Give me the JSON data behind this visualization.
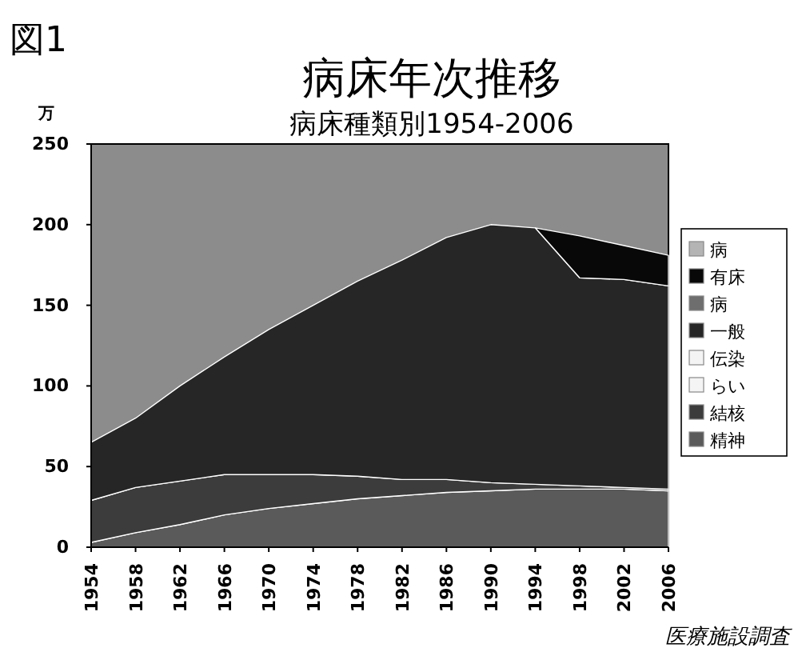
{
  "chart_data": {
    "type": "area",
    "stacked": true,
    "title": "病床年次推移",
    "subtitle": "病床種類別1954-2006",
    "ylabel": "万",
    "annotations": [
      "図1",
      "医療施設調査"
    ],
    "x": [
      1954,
      1958,
      1962,
      1966,
      1970,
      1974,
      1978,
      1982,
      1986,
      1990,
      1994,
      1998,
      2002,
      2006
    ],
    "xlim": [
      1954,
      2006
    ],
    "xticks": [
      1954,
      1958,
      1962,
      1966,
      1970,
      1974,
      1978,
      1982,
      1986,
      1990,
      1994,
      1998,
      2002,
      2006
    ],
    "ylim": [
      0,
      250
    ],
    "yticks": [
      0,
      50,
      100,
      150,
      200,
      250
    ],
    "legend": "right",
    "grid": false,
    "series": [
      {
        "name": "精神",
        "color": "#5a5a5a",
        "values": [
          3,
          9,
          14,
          20,
          24,
          27,
          30,
          32,
          34,
          35,
          36,
          36,
          36,
          35
        ]
      },
      {
        "name": "結核",
        "color": "#3c3c3c",
        "values": [
          26,
          28,
          27,
          25,
          21,
          18,
          14,
          10,
          8,
          5,
          3,
          2,
          1,
          1
        ]
      },
      {
        "name": "らい",
        "color": "#f4f4f4",
        "values": [
          null,
          null,
          null,
          null,
          null,
          null,
          null,
          null,
          null,
          null,
          null,
          null,
          null,
          null
        ]
      },
      {
        "name": "伝染",
        "color": "#f4f4f4",
        "values": [
          null,
          null,
          null,
          null,
          null,
          null,
          null,
          null,
          null,
          null,
          null,
          null,
          null,
          null
        ]
      },
      {
        "name": "一般",
        "color": "#262626",
        "values": [
          36,
          43,
          59,
          73,
          90,
          105,
          121,
          136,
          150,
          160,
          159,
          129,
          129,
          126
        ]
      },
      {
        "name": "病",
        "color": "#6e6e6e",
        "values": [
          null,
          null,
          null,
          null,
          null,
          null,
          null,
          null,
          null,
          null,
          null,
          null,
          null,
          null
        ]
      },
      {
        "name": "有床",
        "color": "#080808",
        "values": [
          null,
          null,
          null,
          null,
          null,
          null,
          null,
          null,
          null,
          null,
          0,
          26,
          21,
          19
        ]
      },
      {
        "name": "病",
        "color": "#b4b4b4",
        "values": [
          null,
          null,
          null,
          null,
          null,
          null,
          null,
          null,
          null,
          null,
          null,
          null,
          null,
          null
        ]
      }
    ]
  }
}
